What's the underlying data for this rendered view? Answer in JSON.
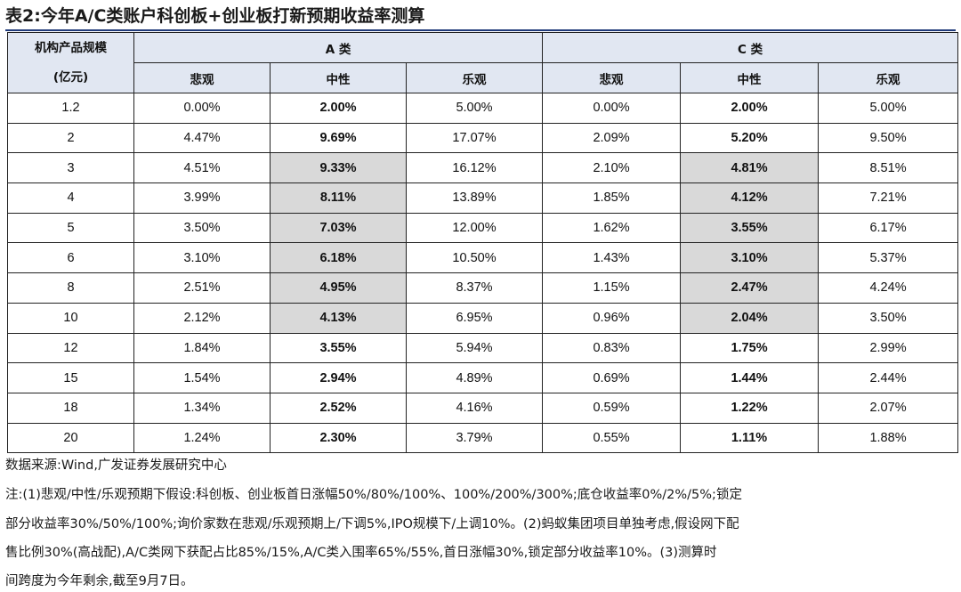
{
  "title": "表2:今年A/C类账户科创板+创业板打新预期收益率测算",
  "table": {
    "corner_line1": "机构产品规模",
    "corner_line2": "(亿元)",
    "group_a": "A 类",
    "group_c": "C 类",
    "scenarios": [
      "悲观",
      "中性",
      "乐观",
      "悲观",
      "中性",
      "乐观"
    ],
    "rows": [
      {
        "size": "1.2",
        "cells": [
          "0.00%",
          "2.00%",
          "5.00%",
          "0.00%",
          "2.00%",
          "5.00%"
        ],
        "shaded": false
      },
      {
        "size": "2",
        "cells": [
          "4.47%",
          "9.69%",
          "17.07%",
          "2.09%",
          "5.20%",
          "9.50%"
        ],
        "shaded": false
      },
      {
        "size": "3",
        "cells": [
          "4.51%",
          "9.33%",
          "16.12%",
          "2.10%",
          "4.81%",
          "8.51%"
        ],
        "shaded": true
      },
      {
        "size": "4",
        "cells": [
          "3.99%",
          "8.11%",
          "13.89%",
          "1.85%",
          "4.12%",
          "7.21%"
        ],
        "shaded": true
      },
      {
        "size": "5",
        "cells": [
          "3.50%",
          "7.03%",
          "12.00%",
          "1.62%",
          "3.55%",
          "6.17%"
        ],
        "shaded": true
      },
      {
        "size": "6",
        "cells": [
          "3.10%",
          "6.18%",
          "10.50%",
          "1.43%",
          "3.10%",
          "5.37%"
        ],
        "shaded": true
      },
      {
        "size": "8",
        "cells": [
          "2.51%",
          "4.95%",
          "8.37%",
          "1.15%",
          "2.47%",
          "4.24%"
        ],
        "shaded": true
      },
      {
        "size": "10",
        "cells": [
          "2.12%",
          "4.13%",
          "6.95%",
          "0.96%",
          "2.04%",
          "3.50%"
        ],
        "shaded": true
      },
      {
        "size": "12",
        "cells": [
          "1.84%",
          "3.55%",
          "5.94%",
          "0.83%",
          "1.75%",
          "2.99%"
        ],
        "shaded": false
      },
      {
        "size": "15",
        "cells": [
          "1.54%",
          "2.94%",
          "4.89%",
          "0.69%",
          "1.44%",
          "2.44%"
        ],
        "shaded": false
      },
      {
        "size": "18",
        "cells": [
          "1.34%",
          "2.52%",
          "4.16%",
          "0.59%",
          "1.22%",
          "2.07%"
        ],
        "shaded": false
      },
      {
        "size": "20",
        "cells": [
          "1.24%",
          "2.30%",
          "3.79%",
          "0.55%",
          "1.11%",
          "1.88%"
        ],
        "shaded": false
      }
    ]
  },
  "source": "数据来源:Wind,广发证券发展研究中心",
  "notes": [
    "注:(1)悲观/中性/乐观预期下假设:科创板、创业板首日涨幅50%/80%/100%、100%/200%/300%;底仓收益率0%/2%/5%;锁定",
    "部分收益率30%/50%/100%;询价家数在悲观/乐观预期上/下调5%,IPO规模下/上调10%。(2)蚂蚁集团项目单独考虑,假设网下配",
    "售比例30%(高战配),A/C类网下获配占比85%/15%,A/C类入围率65%/55%,首日涨幅30%,锁定部分收益率10%。(3)测算时",
    "间跨度为今年剩余,截至9月7日。"
  ],
  "colors": {
    "header_bg": "#e1e7f2",
    "highlight_bg": "#d9d9d9",
    "title_rule": "#1f3a7a"
  }
}
